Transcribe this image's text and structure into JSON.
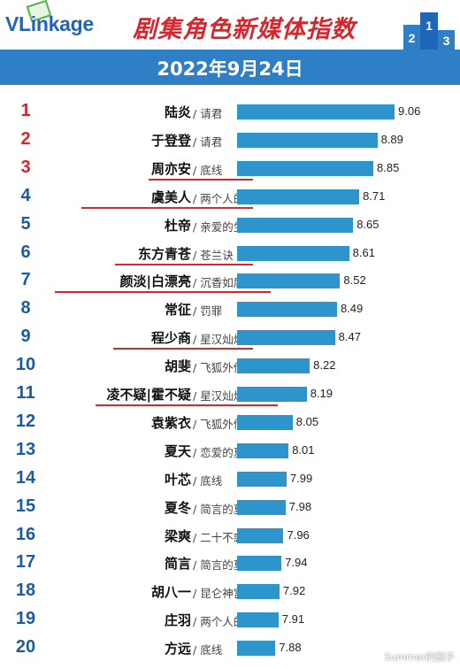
{
  "header": {
    "logo_text": "VLinkage",
    "title": "剧集角色新媒体指数",
    "date": "2022年9月24日",
    "podium_labels": [
      "2",
      "1",
      "3"
    ]
  },
  "colors": {
    "bar": "#2e94cc",
    "band": "#2f7fc6",
    "title": "#d6262e",
    "rank_top": "#d6262e",
    "rank": "#1e5a9e"
  },
  "chart_data": {
    "type": "bar",
    "orientation": "horizontal",
    "categories": [
      "陆炎",
      "于登登",
      "周亦安",
      "虞美人",
      "杜帝",
      "东方青苍",
      "颜淡|白漂亮",
      "常征",
      "程少商",
      "胡斐",
      "凌不疑|霍不疑",
      "袁紫衣",
      "夏天",
      "叶芯",
      "夏冬",
      "梁爽",
      "简言",
      "胡八一",
      "庄羽",
      "方远"
    ],
    "dramas": [
      "请君",
      "请君",
      "底线",
      "两个人的小森林",
      "亲爱的生命",
      "苍兰诀",
      "沉香如屑*沉...",
      "罚罪",
      "星汉灿烂*月升沧海",
      "飞狐外传",
      "星汉灿烂*...",
      "飞狐外传",
      "恋爱的夏天",
      "底线",
      "简言的夏冬",
      "二十不惑2",
      "简言的夏冬",
      "昆仑神宫",
      "两个人的小森林",
      "底线"
    ],
    "ranks": [
      "1",
      "2",
      "3",
      "4",
      "5",
      "6",
      "7",
      "8",
      "9",
      "10",
      "11",
      "12",
      "13",
      "14",
      "15",
      "16",
      "17",
      "18",
      "19",
      "20"
    ],
    "values": [
      9.06,
      8.89,
      8.85,
      8.71,
      8.65,
      8.61,
      8.52,
      8.49,
      8.47,
      8.22,
      8.19,
      8.05,
      8.01,
      7.99,
      7.98,
      7.96,
      7.94,
      7.92,
      7.91,
      7.88
    ],
    "value_labels": [
      "9.06",
      "8.89",
      "8.85",
      "8.71",
      "8.65",
      "8.61",
      "8.52",
      "8.49",
      "8.47",
      "8.22",
      "8.19",
      "8.05",
      "8.01",
      "7.99",
      "7.98",
      "7.96",
      "7.94",
      "7.92",
      "7.91",
      "7.88"
    ],
    "underlined": [
      2,
      3,
      5,
      6,
      8,
      10
    ],
    "title": "剧集角色新媒体指数"
  },
  "watermark": "Summer的园子"
}
